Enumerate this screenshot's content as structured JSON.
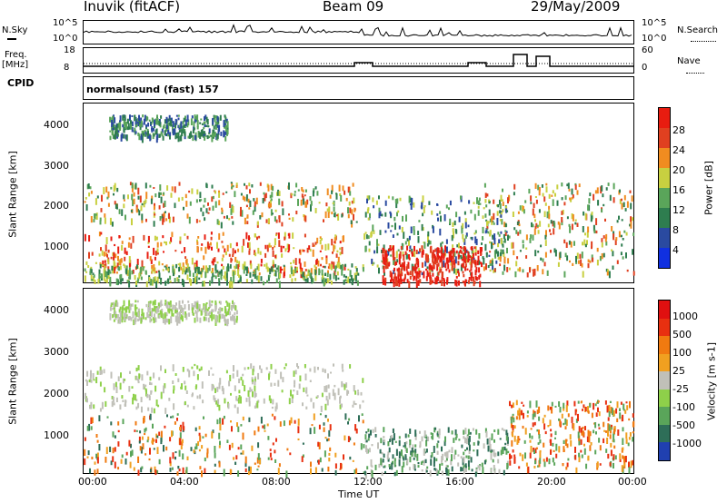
{
  "header": {
    "station": "Inuvik (fitACF)",
    "beam": "Beam 09",
    "date": "29/May/2009"
  },
  "status_panels": {
    "nsky_label": "N.Sky",
    "nsky_ticks": [
      "10^5",
      "10^0"
    ],
    "nsearch_label": "N.Search",
    "nsearch_ticks": [
      "10^5",
      "10^0"
    ],
    "freq_label": "Freq.",
    "freq_unit": "[MHz]",
    "freq_ticks": [
      "18",
      "8"
    ],
    "nave_label": "Nave",
    "nave_ticks": [
      "60",
      "0"
    ],
    "cpid_label": "CPID",
    "cpid_value": "normalsound (fast) 157"
  },
  "chart_data": [
    {
      "type": "heatmap",
      "name": "power",
      "ylabel": "Slant Range [km]",
      "xlabel": "",
      "yticks": [
        "1000",
        "2000",
        "3000",
        "4000"
      ],
      "ylim": [
        180,
        4500
      ],
      "xlim": [
        "00:00",
        "24:00"
      ],
      "colorbar": {
        "label": "Power [dB]",
        "ticks": [
          "4",
          "8",
          "12",
          "16",
          "20",
          "24",
          "28"
        ],
        "colors": [
          "#1030e0",
          "#2a4aa0",
          "#2e7d4f",
          "#5aa55a",
          "#c8d040",
          "#f08c20",
          "#e04020",
          "#e81c10"
        ]
      }
    },
    {
      "type": "heatmap",
      "name": "velocity",
      "ylabel": "Slant Range [km]",
      "xlabel": "Time UT",
      "yticks": [
        "1000",
        "2000",
        "3000",
        "4000"
      ],
      "ylim": [
        180,
        4500
      ],
      "xticks": [
        "00:00",
        "04:00",
        "08:00",
        "12:00",
        "16:00",
        "20:00",
        "00:00"
      ],
      "colorbar": {
        "label": "Velocity [m s-1]",
        "ticks": [
          "1000",
          "500",
          "100",
          "25",
          "-25",
          "-100",
          "-500",
          "-1000"
        ],
        "colors": [
          "#2040b0",
          "#2e6e58",
          "#5aa55a",
          "#8ed04a",
          "#c0c0b8",
          "#f0a020",
          "#f07a10",
          "#e83010",
          "#e01010"
        ]
      }
    }
  ]
}
